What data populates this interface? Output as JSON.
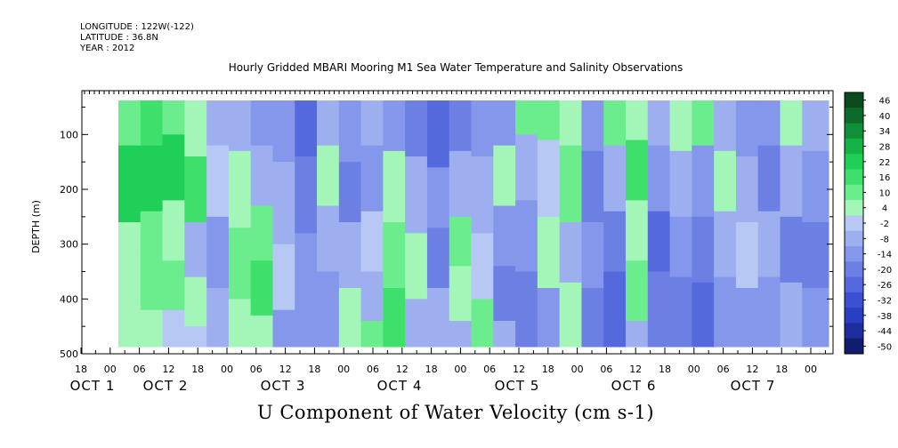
{
  "header": {
    "longitude": "LONGITUDE : 122W(-122)",
    "latitude": "LATITUDE : 36.8N",
    "year": "YEAR : 2012"
  },
  "chart_data": {
    "type": "heatmap",
    "title": "Hourly Gridded MBARI Mooring M1 Sea Water Temperature and Salinity Observations",
    "xlabel": "U Component of Water Velocity (cm s-1)",
    "ylabel": "DEPTH (m)",
    "ylim": [
      500,
      20
    ],
    "y_ticks": [
      100,
      200,
      300,
      400,
      500
    ],
    "x_hour_ticks": [
      "18",
      "00",
      "06",
      "12",
      "18",
      "00",
      "06",
      "12",
      "18",
      "00",
      "06",
      "12",
      "18",
      "00",
      "06",
      "12",
      "18",
      "00",
      "06",
      "12",
      "18",
      "00",
      "06",
      "12",
      "18",
      "00",
      "06",
      "12",
      "18",
      "00"
    ],
    "x_date_labels": [
      "OCT 1",
      "OCT 2",
      "OCT 3",
      "OCT 4",
      "OCT 5",
      "OCT 6",
      "OCT 7"
    ],
    "colorbar_levels": [
      "46",
      "40",
      "34",
      "28",
      "22",
      "16",
      "10",
      "4",
      "-2",
      "-8",
      "-14",
      "-20",
      "-26",
      "-32",
      "-38",
      "-44",
      "-50"
    ],
    "colorbar_colors": [
      "#0a4a1c",
      "#0d6b2a",
      "#108f38",
      "#14b347",
      "#1fcf57",
      "#3fdf6b",
      "#6ced8d",
      "#a3f5b8",
      "#b8c8f5",
      "#9eaff0",
      "#8597ea",
      "#6c80e3",
      "#5369dc",
      "#3a52d2",
      "#2a3fc0",
      "#1e2e9c",
      "#101c6c"
    ],
    "columns": [
      {
        "x0": 0,
        "x1": 5,
        "bands": [
          [
            20,
            120,
            12
          ],
          [
            120,
            260,
            22
          ],
          [
            260,
            400,
            8
          ],
          [
            400,
            490,
            4
          ]
        ]
      },
      {
        "x0": 5,
        "x1": 10,
        "bands": [
          [
            20,
            120,
            16
          ],
          [
            120,
            240,
            26
          ],
          [
            240,
            320,
            10
          ],
          [
            320,
            420,
            14
          ],
          [
            420,
            490,
            6
          ]
        ]
      },
      {
        "x0": 10,
        "x1": 15,
        "bands": [
          [
            20,
            100,
            10
          ],
          [
            100,
            220,
            22
          ],
          [
            220,
            330,
            6
          ],
          [
            330,
            420,
            12
          ],
          [
            420,
            490,
            2
          ]
        ]
      },
      {
        "x0": 15,
        "x1": 20,
        "bands": [
          [
            20,
            140,
            6
          ],
          [
            140,
            260,
            18
          ],
          [
            260,
            360,
            -4
          ],
          [
            360,
            450,
            8
          ],
          [
            450,
            490,
            -2
          ]
        ]
      },
      {
        "x0": 20,
        "x1": 25,
        "bands": [
          [
            20,
            120,
            -8
          ],
          [
            120,
            250,
            -2
          ],
          [
            250,
            380,
            -12
          ],
          [
            380,
            490,
            -6
          ]
        ]
      },
      {
        "x0": 25,
        "x1": 30,
        "bands": [
          [
            20,
            130,
            -4
          ],
          [
            130,
            270,
            6
          ],
          [
            270,
            400,
            14
          ],
          [
            400,
            490,
            8
          ]
        ]
      },
      {
        "x0": 30,
        "x1": 35,
        "bands": [
          [
            20,
            120,
            -10
          ],
          [
            120,
            230,
            -4
          ],
          [
            230,
            330,
            10
          ],
          [
            330,
            430,
            16
          ],
          [
            430,
            490,
            6
          ]
        ]
      },
      {
        "x0": 35,
        "x1": 40,
        "bands": [
          [
            20,
            150,
            -14
          ],
          [
            150,
            300,
            -8
          ],
          [
            300,
            420,
            -2
          ],
          [
            420,
            490,
            -10
          ]
        ]
      },
      {
        "x0": 40,
        "x1": 45,
        "bands": [
          [
            20,
            140,
            -22
          ],
          [
            140,
            280,
            -16
          ],
          [
            280,
            400,
            -10
          ],
          [
            400,
            490,
            -14
          ]
        ]
      },
      {
        "x0": 45,
        "x1": 50,
        "bands": [
          [
            20,
            120,
            -8
          ],
          [
            120,
            230,
            4
          ],
          [
            230,
            350,
            -6
          ],
          [
            350,
            490,
            -12
          ]
        ]
      },
      {
        "x0": 50,
        "x1": 55,
        "bands": [
          [
            20,
            150,
            -10
          ],
          [
            150,
            260,
            -18
          ],
          [
            260,
            380,
            -6
          ],
          [
            380,
            490,
            4
          ]
        ]
      },
      {
        "x0": 55,
        "x1": 60,
        "bands": [
          [
            20,
            120,
            -4
          ],
          [
            120,
            240,
            -10
          ],
          [
            240,
            350,
            2
          ],
          [
            350,
            440,
            -8
          ],
          [
            440,
            490,
            10
          ]
        ]
      },
      {
        "x0": 60,
        "x1": 65,
        "bands": [
          [
            20,
            130,
            -12
          ],
          [
            130,
            260,
            4
          ],
          [
            260,
            380,
            12
          ],
          [
            380,
            490,
            16
          ]
        ]
      },
      {
        "x0": 65,
        "x1": 70,
        "bands": [
          [
            20,
            140,
            -18
          ],
          [
            140,
            280,
            -6
          ],
          [
            280,
            400,
            6
          ],
          [
            400,
            490,
            -4
          ]
        ]
      },
      {
        "x0": 70,
        "x1": 75,
        "bands": [
          [
            20,
            160,
            -26
          ],
          [
            160,
            270,
            -10
          ],
          [
            270,
            380,
            -16
          ],
          [
            380,
            490,
            -8
          ]
        ]
      },
      {
        "x0": 75,
        "x1": 80,
        "bands": [
          [
            20,
            130,
            -20
          ],
          [
            130,
            250,
            -4
          ],
          [
            250,
            340,
            14
          ],
          [
            340,
            440,
            4
          ],
          [
            440,
            490,
            -6
          ]
        ]
      },
      {
        "x0": 80,
        "x1": 85,
        "bands": [
          [
            20,
            140,
            -14
          ],
          [
            140,
            280,
            -8
          ],
          [
            280,
            400,
            -2
          ],
          [
            400,
            490,
            10
          ]
        ]
      },
      {
        "x0": 85,
        "x1": 90,
        "bands": [
          [
            20,
            120,
            -10
          ],
          [
            120,
            230,
            8
          ],
          [
            230,
            340,
            -12
          ],
          [
            340,
            440,
            -18
          ],
          [
            440,
            490,
            -8
          ]
        ]
      },
      {
        "x0": 90,
        "x1": 95,
        "bands": [
          [
            20,
            100,
            14
          ],
          [
            100,
            220,
            -6
          ],
          [
            220,
            350,
            -14
          ],
          [
            350,
            490,
            -20
          ]
        ]
      },
      {
        "x0": 95,
        "x1": 100,
        "bands": [
          [
            20,
            110,
            10
          ],
          [
            110,
            250,
            -2
          ],
          [
            250,
            380,
            6
          ],
          [
            380,
            490,
            -10
          ]
        ]
      },
      {
        "x0": 100,
        "x1": 105,
        "bands": [
          [
            20,
            120,
            8
          ],
          [
            120,
            260,
            14
          ],
          [
            260,
            370,
            -4
          ],
          [
            370,
            490,
            4
          ]
        ]
      },
      {
        "x0": 105,
        "x1": 110,
        "bands": [
          [
            20,
            130,
            -12
          ],
          [
            130,
            260,
            -20
          ],
          [
            260,
            380,
            -10
          ],
          [
            380,
            490,
            -16
          ]
        ]
      },
      {
        "x0": 110,
        "x1": 115,
        "bands": [
          [
            20,
            120,
            12
          ],
          [
            120,
            240,
            -6
          ],
          [
            240,
            350,
            -16
          ],
          [
            350,
            490,
            -22
          ]
        ]
      },
      {
        "x0": 115,
        "x1": 120,
        "bands": [
          [
            20,
            110,
            8
          ],
          [
            110,
            220,
            16
          ],
          [
            220,
            330,
            4
          ],
          [
            330,
            440,
            10
          ],
          [
            440,
            490,
            -4
          ]
        ]
      },
      {
        "x0": 120,
        "x1": 125,
        "bands": [
          [
            20,
            120,
            -8
          ],
          [
            120,
            240,
            -14
          ],
          [
            240,
            350,
            -22
          ],
          [
            350,
            490,
            -18
          ]
        ]
      },
      {
        "x0": 125,
        "x1": 130,
        "bands": [
          [
            20,
            130,
            6
          ],
          [
            130,
            250,
            -4
          ],
          [
            250,
            360,
            -12
          ],
          [
            360,
            490,
            -20
          ]
        ]
      },
      {
        "x0": 130,
        "x1": 135,
        "bands": [
          [
            20,
            120,
            10
          ],
          [
            120,
            250,
            -10
          ],
          [
            250,
            370,
            -18
          ],
          [
            370,
            490,
            -24
          ]
        ]
      },
      {
        "x0": 135,
        "x1": 140,
        "bands": [
          [
            20,
            130,
            -6
          ],
          [
            130,
            240,
            4
          ],
          [
            240,
            360,
            -8
          ],
          [
            360,
            490,
            -14
          ]
        ]
      },
      {
        "x0": 140,
        "x1": 145,
        "bands": [
          [
            20,
            140,
            -12
          ],
          [
            140,
            260,
            -6
          ],
          [
            260,
            380,
            2
          ],
          [
            380,
            490,
            -10
          ]
        ]
      },
      {
        "x0": 145,
        "x1": 150,
        "bands": [
          [
            20,
            120,
            -10
          ],
          [
            120,
            240,
            -16
          ],
          [
            240,
            360,
            -8
          ],
          [
            360,
            490,
            -12
          ]
        ]
      },
      {
        "x0": 150,
        "x1": 155,
        "bands": [
          [
            20,
            120,
            4
          ],
          [
            120,
            250,
            -8
          ],
          [
            250,
            370,
            -20
          ],
          [
            370,
            490,
            -6
          ]
        ]
      },
      {
        "x0": 155,
        "x1": 161,
        "bands": [
          [
            20,
            130,
            -4
          ],
          [
            130,
            260,
            -12
          ],
          [
            260,
            380,
            -18
          ],
          [
            380,
            490,
            -14
          ]
        ]
      }
    ]
  }
}
